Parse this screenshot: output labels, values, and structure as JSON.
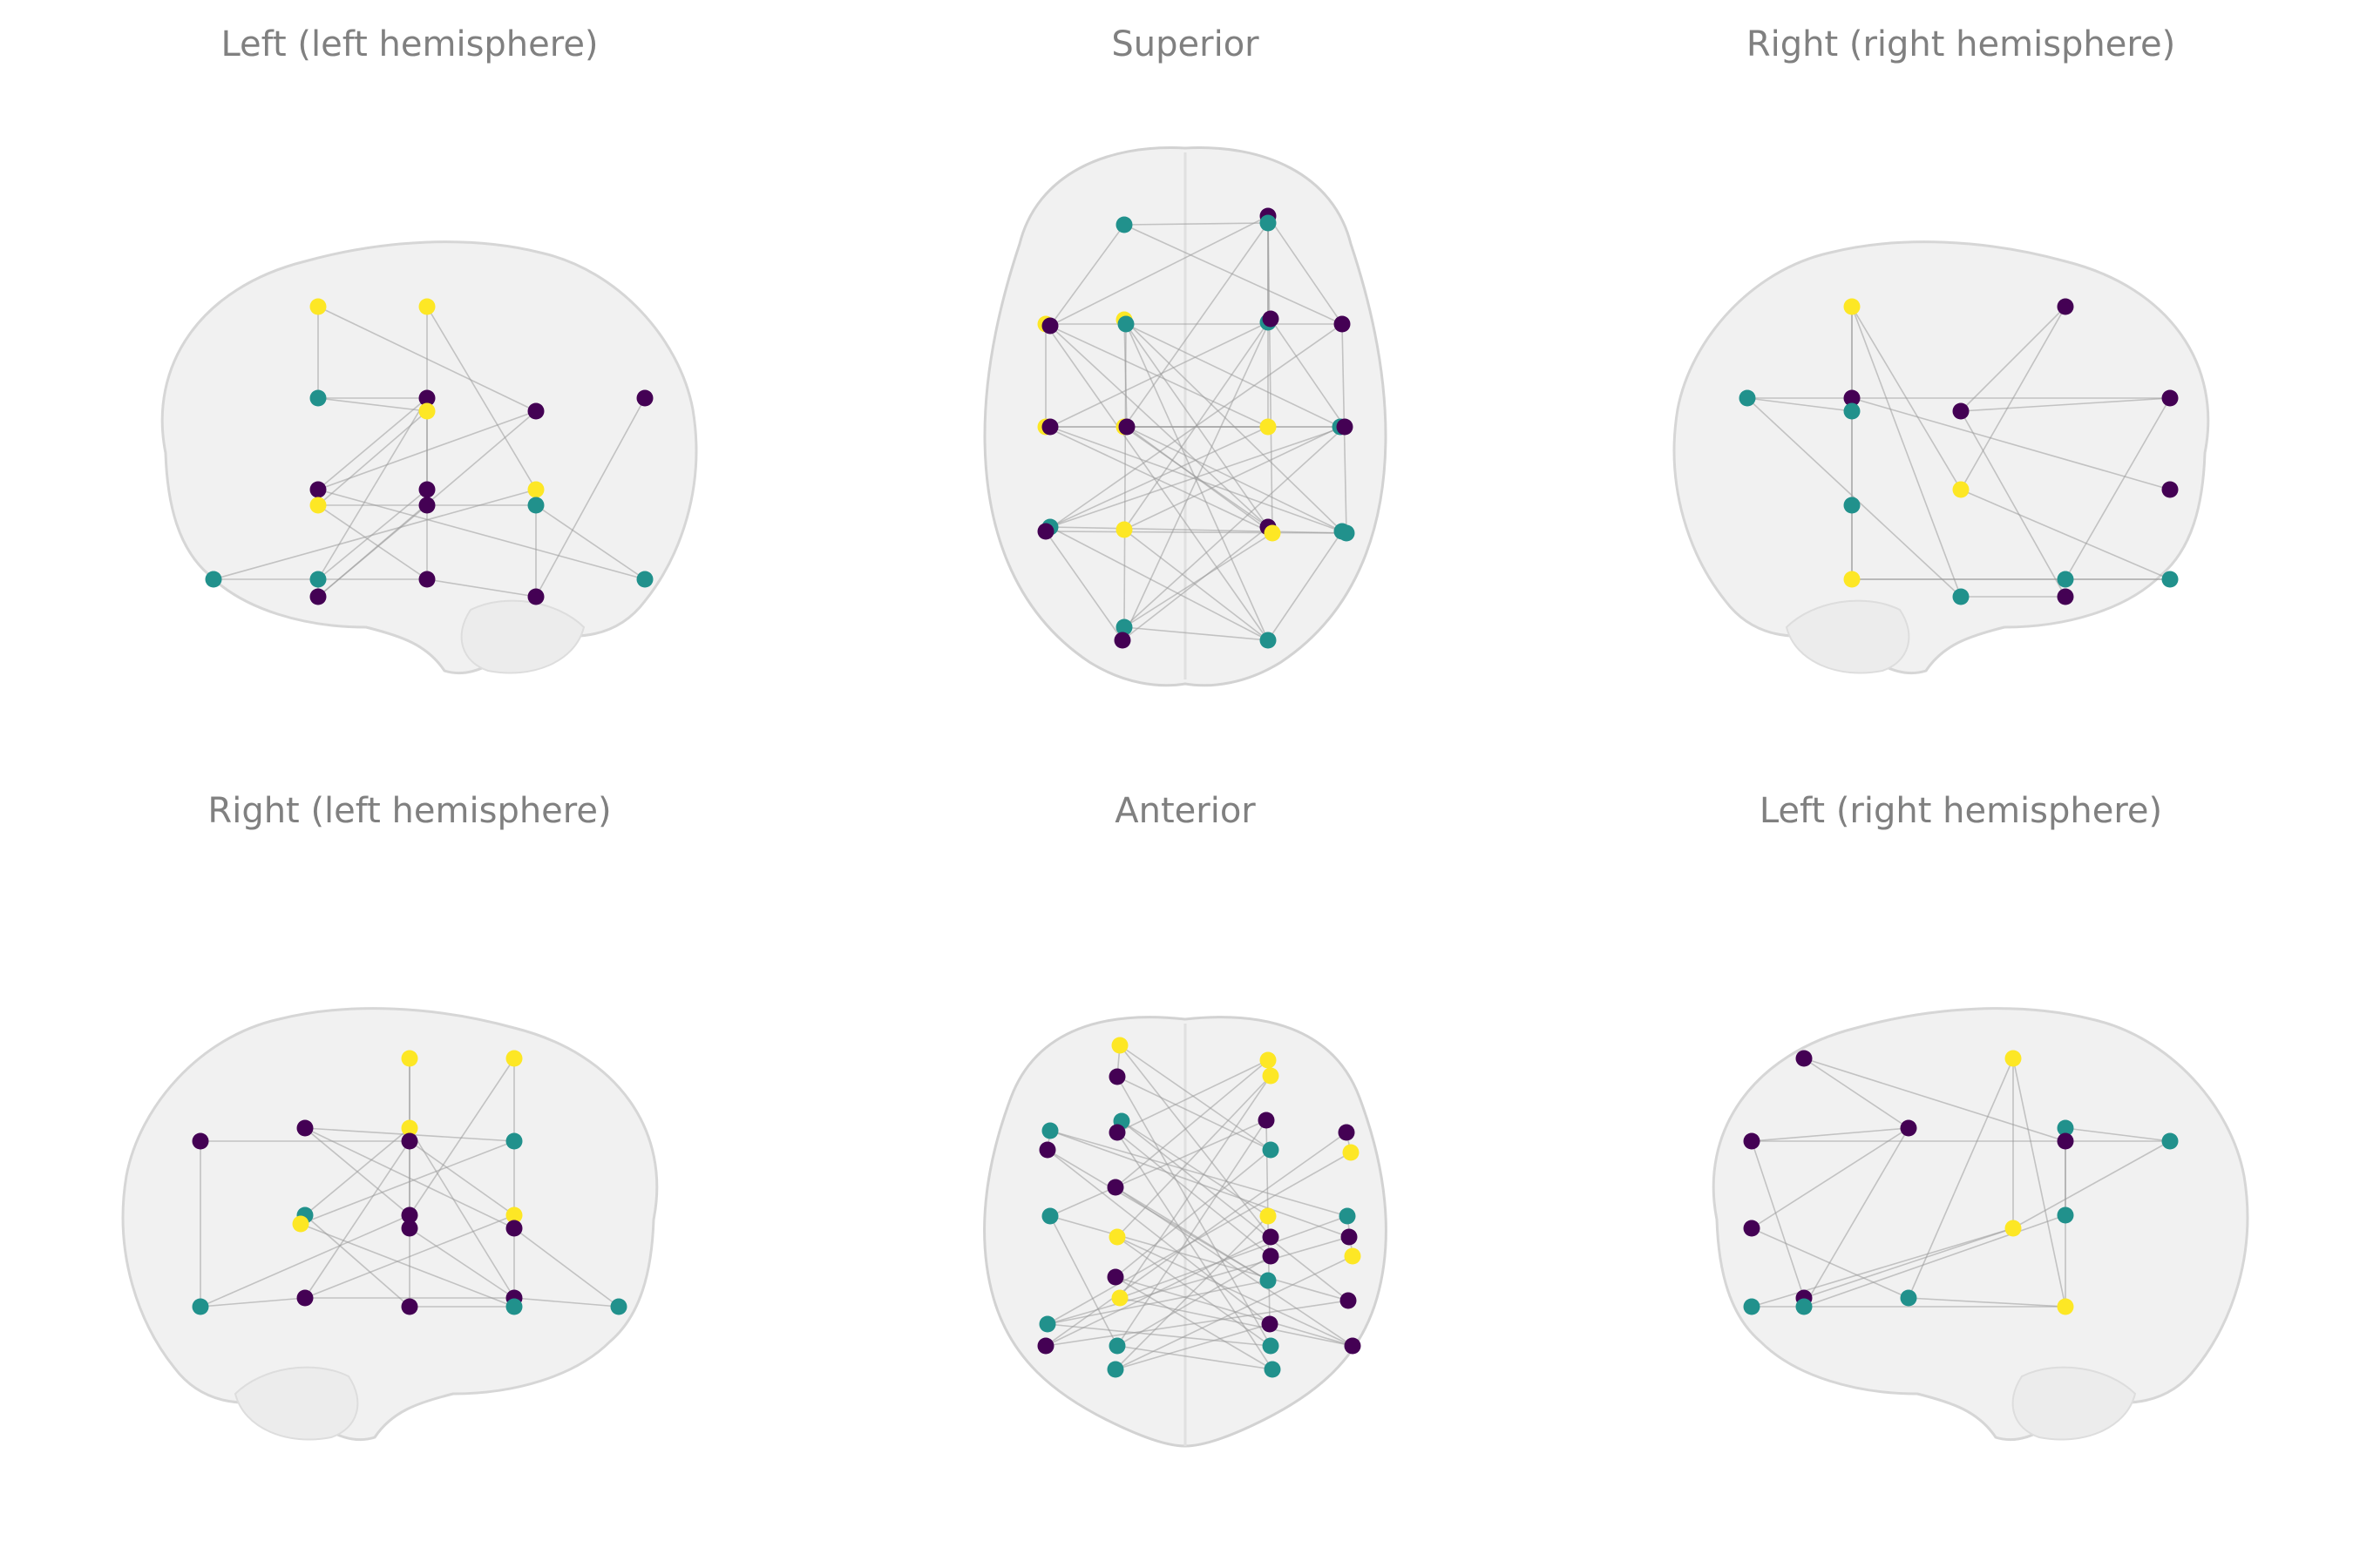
{
  "figure": {
    "colors": {
      "purple": "#440154",
      "teal": "#21918c",
      "yellow": "#fde725",
      "edge": "#9a9a9a",
      "brain_fill": "#f1f1f1",
      "brain_stroke": "#cfcfcf",
      "title": "#808080"
    },
    "panels": [
      {
        "id": "left-lh",
        "title": "Left (left hemisphere)",
        "view": "sagittal-left"
      },
      {
        "id": "superior",
        "title": "Superior",
        "view": "axial"
      },
      {
        "id": "right-rh",
        "title": "Right (right hemisphere)",
        "view": "sagittal-right"
      },
      {
        "id": "right-lh",
        "title": "Right (left hemisphere)",
        "view": "sagittal-right"
      },
      {
        "id": "anterior",
        "title": "Anterior",
        "view": "coronal"
      },
      {
        "id": "left-rh",
        "title": "Left (right hemisphere)",
        "view": "sagittal-left"
      }
    ]
  }
}
